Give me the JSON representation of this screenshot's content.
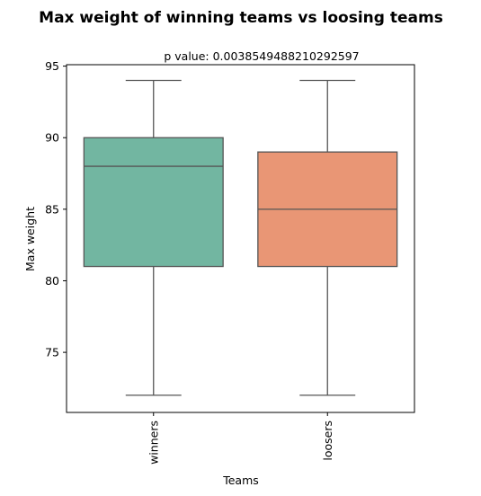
{
  "chart_data": {
    "type": "box",
    "suptitle": "Max weight of winning teams vs loosing teams",
    "title": "p value: 0.0038549488210292597",
    "xlabel": "Teams",
    "ylabel": "Max weight",
    "ylim": [
      70.8,
      95.1
    ],
    "yticks": [
      75,
      80,
      85,
      90,
      95
    ],
    "categories": [
      "winners",
      "loosers"
    ],
    "boxes": [
      {
        "name": "winners",
        "whisker_low": 72,
        "q1": 81,
        "median": 88,
        "q3": 90,
        "whisker_high": 94,
        "color": "#72b6a1"
      },
      {
        "name": "loosers",
        "whisker_low": 72,
        "q1": 81,
        "median": 85,
        "q3": 89,
        "whisker_high": 94,
        "color": "#e99675"
      }
    ],
    "line_color": "#555555"
  }
}
